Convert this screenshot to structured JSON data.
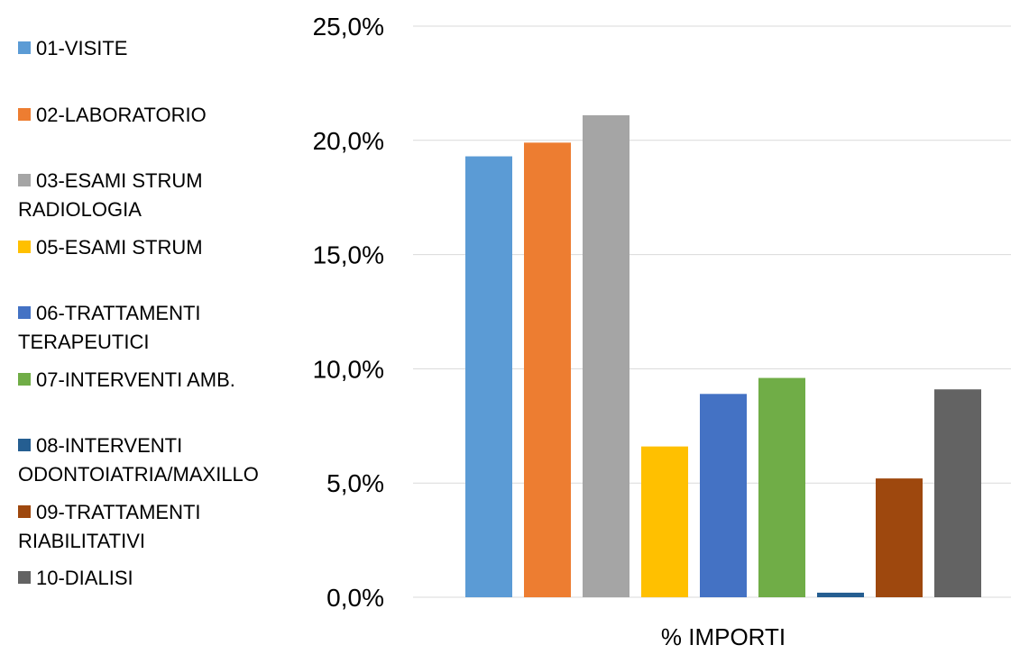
{
  "chart_data": {
    "type": "bar",
    "categories": [
      "% IMPORTI"
    ],
    "series": [
      {
        "name": "01-VISITE",
        "color": "#5b9bd5",
        "values": [
          19.3
        ]
      },
      {
        "name": "02-LABORATORIO",
        "color": "#ed7d31",
        "values": [
          19.9
        ]
      },
      {
        "name": "03-ESAMI STRUM RADIOLOGIA",
        "color": "#a5a5a5",
        "values": [
          21.1
        ]
      },
      {
        "name": "05-ESAMI STRUM",
        "color": "#ffc000",
        "values": [
          6.6
        ]
      },
      {
        "name": "06-TRATTAMENTI TERAPEUTICI",
        "color": "#4472c4",
        "values": [
          8.9
        ]
      },
      {
        "name": "07-INTERVENTI AMB.",
        "color": "#70ad47",
        "values": [
          9.6
        ]
      },
      {
        "name": "08-INTERVENTI ODONTOIATRIA/MAXILLO",
        "color": "#255e91",
        "values": [
          0.2
        ]
      },
      {
        "name": "09-TRATTAMENTI RIABILITATIVI",
        "color": "#9e480e",
        "values": [
          5.2
        ]
      },
      {
        "name": "10-DIALISI",
        "color": "#636363",
        "values": [
          9.1
        ]
      }
    ],
    "ylim": [
      0,
      25
    ],
    "yticks": [
      {
        "value": 0,
        "label": "0,0%"
      },
      {
        "value": 5,
        "label": "5,0%"
      },
      {
        "value": 10,
        "label": "10,0%"
      },
      {
        "value": 15,
        "label": "15,0%"
      },
      {
        "value": 20,
        "label": "20,0%"
      },
      {
        "value": 25,
        "label": "25,0%"
      }
    ],
    "grid": true,
    "legend": "left"
  }
}
